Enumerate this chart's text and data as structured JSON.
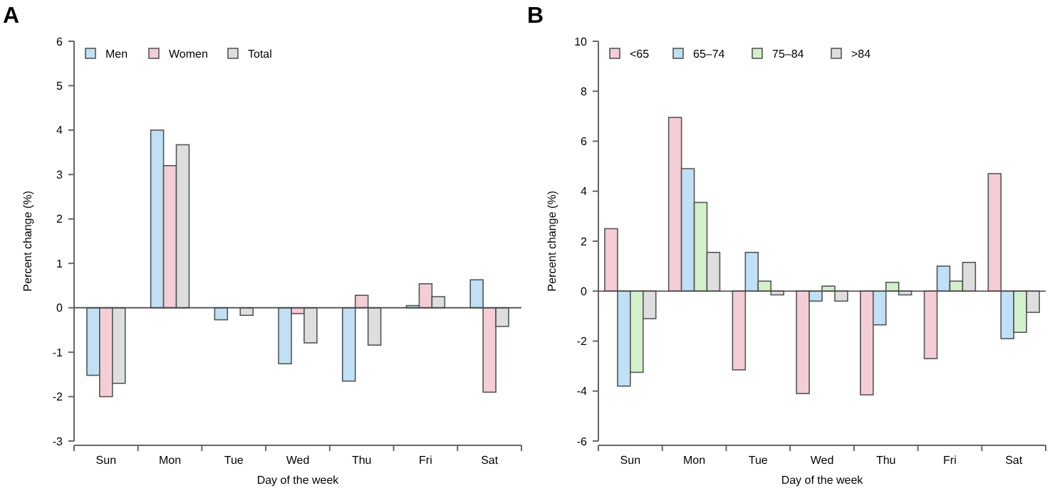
{
  "chart_data": [
    {
      "type": "bar",
      "title": "A",
      "xlabel": "Day of the week",
      "ylabel": "Percent change (%)",
      "categories": [
        "Sun",
        "Mon",
        "Tue",
        "Wed",
        "Thu",
        "Fri",
        "Sat"
      ],
      "ylim": [
        -3,
        6
      ],
      "yticks": [
        -3,
        -2,
        -1,
        0,
        1,
        2,
        3,
        4,
        5,
        6
      ],
      "legend": "top left",
      "ref_lines": [
        {
          "axis": "y",
          "value": 0,
          "color": "#444444"
        }
      ],
      "series": [
        {
          "name": "Men",
          "color": "#bfe0f5",
          "values": [
            -1.52,
            4.0,
            -0.27,
            -1.26,
            -1.65,
            0.05,
            0.63
          ]
        },
        {
          "name": "Women",
          "color": "#f5cdd6",
          "values": [
            -2.0,
            3.2,
            0,
            -0.13,
            0.28,
            0.54,
            -1.9
          ]
        },
        {
          "name": "Total",
          "color": "#dedede",
          "values": [
            -1.7,
            3.67,
            -0.17,
            -0.79,
            -0.84,
            0.25,
            -0.42
          ]
        }
      ]
    },
    {
      "type": "bar",
      "title": "B",
      "xlabel": "Day of the week",
      "ylabel": "Percent change (%)",
      "categories": [
        "Sun",
        "Mon",
        "Tue",
        "Wed",
        "Thu",
        "Fri",
        "Sat"
      ],
      "ylim": [
        -6,
        10
      ],
      "yticks": [
        -6,
        -4,
        -2,
        0,
        2,
        4,
        6,
        8,
        10
      ],
      "legend": "top left",
      "ref_lines": [
        {
          "axis": "y",
          "value": 0,
          "color": "#444444"
        }
      ],
      "series": [
        {
          "name": "<65",
          "color": "#f5cdd6",
          "values": [
            2.5,
            6.95,
            -3.15,
            -4.1,
            -4.15,
            -2.7,
            4.7
          ]
        },
        {
          "name": "65–74",
          "color": "#bfe0f5",
          "values": [
            -3.8,
            4.9,
            1.55,
            -0.4,
            -1.35,
            1.0,
            -1.9
          ]
        },
        {
          "name": "75–84",
          "color": "#d3f0cc",
          "values": [
            -3.25,
            3.55,
            0.4,
            0.2,
            0.35,
            0.4,
            -1.65
          ]
        },
        {
          "name": ">84",
          "color": "#dedede",
          "values": [
            -1.1,
            1.55,
            -0.15,
            -0.4,
            -0.15,
            1.15,
            -0.85
          ]
        }
      ]
    }
  ]
}
